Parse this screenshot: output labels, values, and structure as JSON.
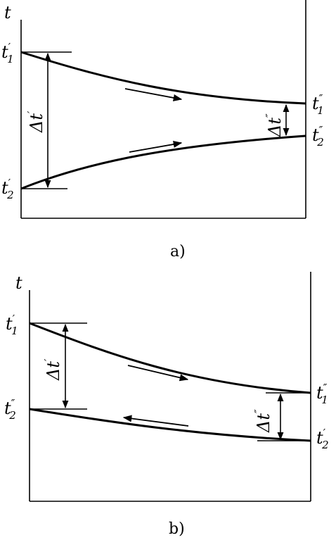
{
  "diagrams": [
    {
      "caption": "a)",
      "axis_label": "t",
      "hot_in": {
        "sym": "t",
        "prime": "′",
        "sub": "1"
      },
      "hot_out": {
        "sym": "t",
        "prime": "″",
        "sub": "1"
      },
      "cold_left": {
        "sym": "t",
        "prime": "′",
        "sub": "2"
      },
      "cold_right": {
        "sym": "t",
        "prime": "″",
        "sub": "2"
      },
      "dt_left": {
        "sym": "Δt",
        "prime": "′"
      },
      "dt_right": {
        "sym": "Δt",
        "prime": "″"
      }
    },
    {
      "caption": "b)",
      "axis_label": "t",
      "hot_in": {
        "sym": "t",
        "prime": "′",
        "sub": "1"
      },
      "hot_out": {
        "sym": "t",
        "prime": "″",
        "sub": "1"
      },
      "cold_left": {
        "sym": "t",
        "prime": "″",
        "sub": "2"
      },
      "cold_right": {
        "sym": "t",
        "prime": "′",
        "sub": "2"
      },
      "dt_left": {
        "sym": "Δt",
        "prime": "′"
      },
      "dt_right": {
        "sym": "Δt",
        "prime": "″"
      }
    }
  ],
  "colors": {
    "ink": "#000000",
    "background": "#ffffff"
  }
}
